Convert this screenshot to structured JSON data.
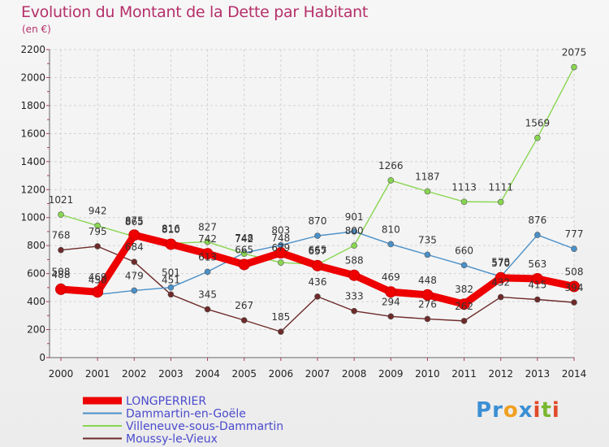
{
  "title": "Evolution du Montant de la Dette par Habitant",
  "subtitle": "(en €)",
  "logo": {
    "text": "Proxiti",
    "letters": [
      "P",
      "r",
      "o",
      "x",
      "i",
      "t",
      "i"
    ],
    "colors": [
      "#3b8fd4",
      "#3b8fd4",
      "#f0a020",
      "#3b8fd4",
      "#e04a2a",
      "#7ab830",
      "#e04a2a"
    ]
  },
  "chart_data": {
    "type": "line",
    "x": [
      2000,
      2001,
      2002,
      2003,
      2004,
      2005,
      2006,
      2007,
      2008,
      2009,
      2010,
      2011,
      2012,
      2013,
      2014
    ],
    "ylim": [
      0,
      2200
    ],
    "yticks": [
      0,
      200,
      400,
      600,
      800,
      1000,
      1200,
      1400,
      1600,
      1800,
      2000,
      2200
    ],
    "grid": true,
    "legend_placement": "bottom-left",
    "series": [
      {
        "name": "LONGPERRIER",
        "color": "#ee0000",
        "values": [
          488,
          469,
          875,
          810,
          742,
          665,
          748,
          657,
          588,
          469,
          448,
          382,
          570,
          563,
          508
        ]
      },
      {
        "name": "Dammartin-en-Goële",
        "color": "#4a90c8",
        "values": [
          508,
          450,
          479,
          501,
          613,
          748,
          803,
          870,
          901,
          810,
          735,
          660,
          578,
          876,
          777
        ]
      },
      {
        "name": "Villeneuve-sous-Dammartin",
        "color": "#88d650",
        "values": [
          1021,
          942,
          865,
          816,
          827,
          742,
          679,
          665,
          800,
          1266,
          1187,
          1113,
          1111,
          1569,
          2075
        ]
      },
      {
        "name": "Moussy-le-Vieux",
        "color": "#6e2a2a",
        "values": [
          768,
          795,
          684,
          451,
          345,
          267,
          185,
          436,
          333,
          294,
          276,
          262,
          432,
          415,
          394
        ]
      }
    ]
  }
}
